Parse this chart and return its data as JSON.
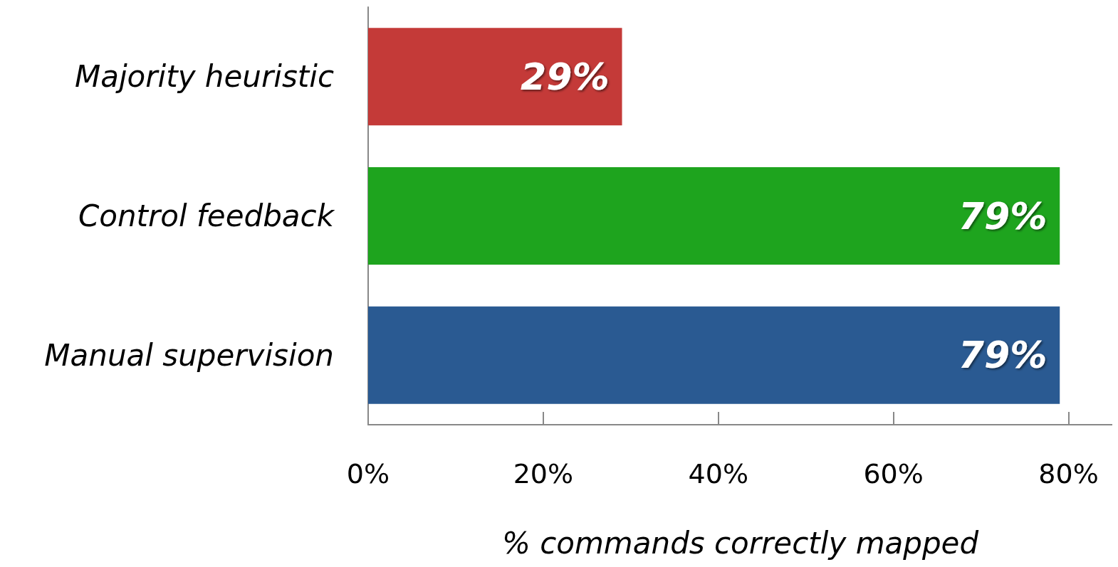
{
  "chart_data": {
    "type": "bar",
    "orientation": "horizontal",
    "categories": [
      "Majority heuristic",
      "Control feedback",
      "Manual supervision"
    ],
    "values": [
      29,
      79,
      79
    ],
    "colors": [
      "#c43a38",
      "#1ea41e",
      "#2a5a92"
    ],
    "value_labels": [
      "29%",
      "79%",
      "79%"
    ],
    "xlabel": "% commands correctly mapped",
    "xlim": [
      0,
      85
    ],
    "xticks": [
      {
        "value": 0,
        "label": "0%"
      },
      {
        "value": 20,
        "label": "20%"
      },
      {
        "value": 40,
        "label": "40%"
      },
      {
        "value": 60,
        "label": "60%"
      },
      {
        "value": 80,
        "label": "80%"
      }
    ],
    "grid": false
  }
}
